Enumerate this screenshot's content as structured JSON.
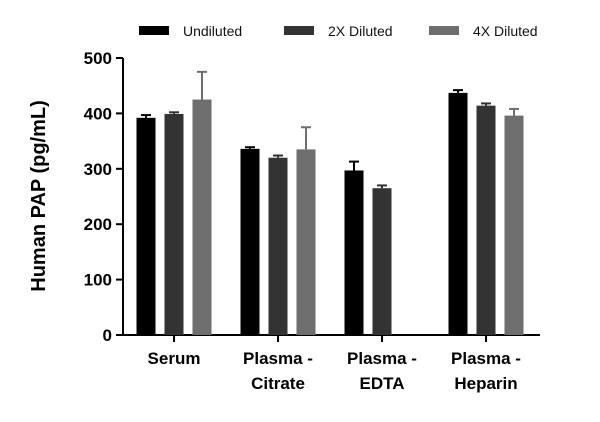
{
  "chart_data": {
    "type": "bar",
    "ylabel": "Human PAP (pg/mL)",
    "xlabel": "",
    "ylim": [
      0,
      500
    ],
    "yticks": [
      "0",
      "100",
      "200",
      "300",
      "400",
      "500"
    ],
    "categories": [
      [
        "Serum"
      ],
      [
        "Plasma -",
        "Citrate"
      ],
      [
        "Plasma -",
        "EDTA"
      ],
      [
        "Plasma -",
        "Heparin"
      ]
    ],
    "legend_position": "top",
    "series": [
      {
        "name": "Undiluted",
        "color": "#000000",
        "values": [
          392,
          336,
          297,
          437
        ],
        "errors": [
          5,
          3,
          16,
          5
        ]
      },
      {
        "name": "2X Diluted",
        "color": "#333333",
        "values": [
          399,
          320,
          265,
          414
        ],
        "errors": [
          3,
          4,
          5,
          4
        ]
      },
      {
        "name": "4X Diluted",
        "color": "#6e6e6e",
        "values": [
          425,
          335,
          null,
          396
        ],
        "errors": [
          50,
          40,
          null,
          12
        ]
      }
    ]
  }
}
